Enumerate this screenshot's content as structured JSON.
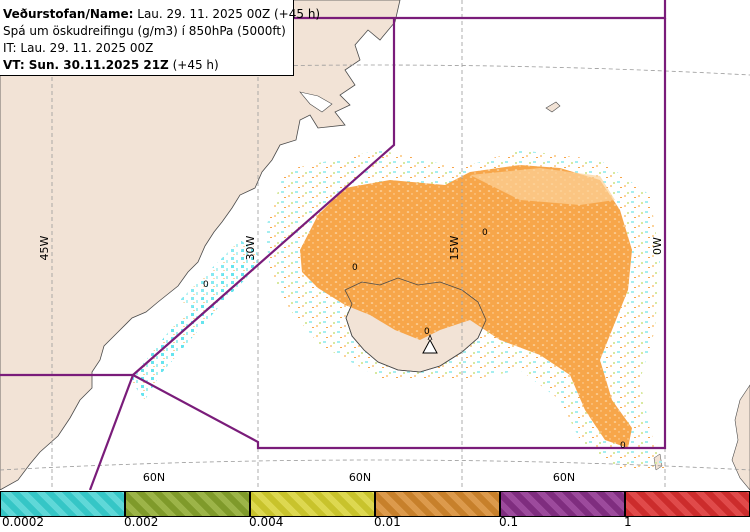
{
  "info": {
    "line1_bold": "Veðurstofan/Name:",
    "line1_text": "Lau. 29. 11. 2025 00Z (+45 h)",
    "line2": "Spá um öskudreifingu (g/m3) í 850hPa (5000ft)",
    "line3": "IT: Lau. 29. 11. 2025 00Z",
    "line4_bold": "VT: Sun. 30.11.2025 21Z",
    "line4_text": "(+45 h)"
  },
  "map": {
    "longitude_labels": [
      "45W",
      "30W",
      "15W",
      "0W"
    ],
    "latitude_labels": [
      "60N",
      "60N",
      "60N"
    ],
    "contour_labels": [
      "0",
      "0",
      "0",
      "0",
      "0"
    ],
    "colors": {
      "land": "#f2e3d6",
      "sea": "#ffffff",
      "boundary": "#7a1c7a",
      "ash_main": "#f7a64a",
      "ash_light": "#fcd39a",
      "ash_trace": "#a5eef0",
      "ash_cyan": "#66e4ee"
    }
  },
  "legend": {
    "ticks": [
      "0.0002",
      "0.002",
      "0.004",
      "0.01",
      "0.1",
      "1"
    ],
    "colors": [
      "#35c6c6",
      "#7f9a2a",
      "#c8c32c",
      "#c7802b",
      "#7f2d7f",
      "#cc2c2c"
    ]
  }
}
